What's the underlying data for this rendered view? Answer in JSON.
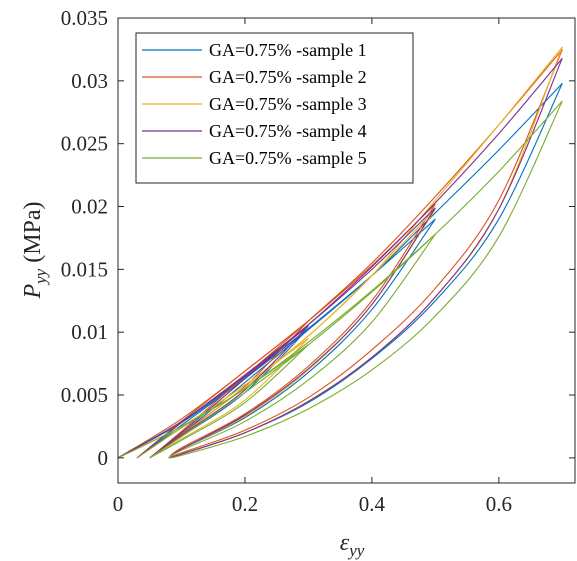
{
  "chart_data": {
    "type": "line",
    "title": "",
    "xlabel": {
      "symbol": "ε",
      "subscript": "yy"
    },
    "ylabel": {
      "symbol": "P",
      "subscript": "yy",
      "unit": "(MPa)"
    },
    "xlim": [
      0,
      0.72
    ],
    "ylim": [
      -0.002,
      0.035
    ],
    "xticks": [
      0,
      0.2,
      0.4,
      0.6
    ],
    "xtick_labels": [
      "0",
      "0.2",
      "0.4",
      "0.6"
    ],
    "yticks": [
      0,
      0.005,
      0.01,
      0.015,
      0.02,
      0.025,
      0.03,
      0.035
    ],
    "ytick_labels": [
      "0",
      "0.005",
      "0.01",
      "0.015",
      "0.02",
      "0.025",
      "0.03",
      "0.035"
    ],
    "grid": false,
    "legend_position": "top-left",
    "series": [
      {
        "name": "GA=0.75% -sample 1",
        "color": "#0072BD",
        "cycles": [
          {
            "load": [
              [
                0.0,
                0.0
              ],
              [
                0.1,
                0.0028
              ],
              [
                0.2,
                0.0064
              ],
              [
                0.3,
                0.0103
              ]
            ],
            "unload": [
              [
                0.3,
                0.0103
              ],
              [
                0.2,
                0.0052
              ],
              [
                0.1,
                0.0017
              ],
              [
                0.05,
                0.0
              ]
            ]
          },
          {
            "load": [
              [
                0.03,
                0.0
              ],
              [
                0.1,
                0.0026
              ],
              [
                0.2,
                0.0063
              ],
              [
                0.3,
                0.0103
              ],
              [
                0.4,
                0.0145
              ],
              [
                0.5,
                0.019
              ]
            ],
            "unload": [
              [
                0.5,
                0.019
              ],
              [
                0.4,
                0.0118
              ],
              [
                0.3,
                0.0068
              ],
              [
                0.2,
                0.0032
              ],
              [
                0.1,
                0.0007
              ],
              [
                0.08,
                0.0
              ]
            ]
          },
          {
            "load": [
              [
                0.05,
                0.0
              ],
              [
                0.1,
                0.0019
              ],
              [
                0.2,
                0.006
              ],
              [
                0.3,
                0.0102
              ],
              [
                0.4,
                0.0145
              ],
              [
                0.5,
                0.0195
              ],
              [
                0.6,
                0.0245
              ],
              [
                0.7,
                0.0298
              ]
            ],
            "unload": [
              [
                0.7,
                0.0298
              ],
              [
                0.6,
                0.019
              ],
              [
                0.5,
                0.0125
              ],
              [
                0.4,
                0.0079
              ],
              [
                0.3,
                0.0044
              ],
              [
                0.2,
                0.002
              ],
              [
                0.1,
                0.0003
              ],
              [
                0.08,
                0.0
              ]
            ]
          }
        ]
      },
      {
        "name": "GA=0.75% -sample 2",
        "color": "#D95319",
        "cycles": [
          {
            "load": [
              [
                0.0,
                0.0
              ],
              [
                0.1,
                0.0031
              ],
              [
                0.2,
                0.0069
              ],
              [
                0.3,
                0.0109
              ]
            ],
            "unload": [
              [
                0.3,
                0.0109
              ],
              [
                0.2,
                0.0057
              ],
              [
                0.1,
                0.0019
              ],
              [
                0.05,
                0.0
              ]
            ]
          },
          {
            "load": [
              [
                0.03,
                0.0
              ],
              [
                0.1,
                0.0029
              ],
              [
                0.2,
                0.0069
              ],
              [
                0.3,
                0.0109
              ],
              [
                0.4,
                0.0153
              ],
              [
                0.5,
                0.0202
              ]
            ],
            "unload": [
              [
                0.5,
                0.0202
              ],
              [
                0.4,
                0.0125
              ],
              [
                0.3,
                0.0073
              ],
              [
                0.2,
                0.0035
              ],
              [
                0.1,
                0.0008
              ],
              [
                0.08,
                0.0
              ]
            ]
          },
          {
            "load": [
              [
                0.05,
                0.0
              ],
              [
                0.1,
                0.0021
              ],
              [
                0.2,
                0.0065
              ],
              [
                0.3,
                0.0109
              ],
              [
                0.4,
                0.0155
              ],
              [
                0.5,
                0.0208
              ],
              [
                0.6,
                0.0265
              ],
              [
                0.7,
                0.0325
              ]
            ],
            "unload": [
              [
                0.7,
                0.0325
              ],
              [
                0.6,
                0.0205
              ],
              [
                0.5,
                0.0135
              ],
              [
                0.4,
                0.0086
              ],
              [
                0.3,
                0.0048
              ],
              [
                0.2,
                0.0022
              ],
              [
                0.1,
                0.0004
              ],
              [
                0.08,
                0.0
              ]
            ]
          }
        ]
      },
      {
        "name": "GA=0.75% -sample 3",
        "color": "#EDB120",
        "cycles": [
          {
            "load": [
              [
                0.0,
                0.0
              ],
              [
                0.1,
                0.0025
              ],
              [
                0.2,
                0.0058
              ],
              [
                0.3,
                0.0095
              ]
            ],
            "unload": [
              [
                0.3,
                0.0095
              ],
              [
                0.2,
                0.0046
              ],
              [
                0.1,
                0.0015
              ],
              [
                0.05,
                0.0
              ]
            ]
          },
          {
            "load": [
              [
                0.03,
                0.0
              ],
              [
                0.1,
                0.0024
              ],
              [
                0.2,
                0.0058
              ],
              [
                0.3,
                0.0097
              ],
              [
                0.4,
                0.0145
              ],
              [
                0.5,
                0.0198
              ]
            ],
            "unload": [
              [
                0.5,
                0.0198
              ],
              [
                0.4,
                0.0122
              ],
              [
                0.3,
                0.007
              ],
              [
                0.2,
                0.0033
              ],
              [
                0.1,
                0.0007
              ],
              [
                0.08,
                0.0
              ]
            ]
          },
          {
            "load": [
              [
                0.05,
                0.0
              ],
              [
                0.1,
                0.0018
              ],
              [
                0.2,
                0.0056
              ],
              [
                0.3,
                0.0097
              ],
              [
                0.4,
                0.0145
              ],
              [
                0.5,
                0.0205
              ],
              [
                0.6,
                0.0265
              ],
              [
                0.7,
                0.0327
              ]
            ],
            "unload": [
              [
                0.7,
                0.0327
              ],
              [
                0.6,
                0.0198
              ],
              [
                0.5,
                0.0128
              ],
              [
                0.4,
                0.008
              ],
              [
                0.3,
                0.0045
              ],
              [
                0.2,
                0.002
              ],
              [
                0.1,
                0.0003
              ],
              [
                0.08,
                0.0
              ]
            ]
          }
        ]
      },
      {
        "name": "GA=0.75% -sample 4",
        "color": "#7E2F8E",
        "cycles": [
          {
            "load": [
              [
                0.0,
                0.0
              ],
              [
                0.1,
                0.0029
              ],
              [
                0.2,
                0.0065
              ],
              [
                0.3,
                0.0105
              ]
            ],
            "unload": [
              [
                0.3,
                0.0105
              ],
              [
                0.2,
                0.0054
              ],
              [
                0.1,
                0.0018
              ],
              [
                0.05,
                0.0
              ]
            ]
          },
          {
            "load": [
              [
                0.03,
                0.0
              ],
              [
                0.1,
                0.0028
              ],
              [
                0.2,
                0.0066
              ],
              [
                0.3,
                0.0106
              ],
              [
                0.4,
                0.015
              ],
              [
                0.5,
                0.0199
              ]
            ],
            "unload": [
              [
                0.5,
                0.0199
              ],
              [
                0.4,
                0.0122
              ],
              [
                0.3,
                0.0071
              ],
              [
                0.2,
                0.0034
              ],
              [
                0.1,
                0.0007
              ],
              [
                0.08,
                0.0
              ]
            ]
          },
          {
            "load": [
              [
                0.05,
                0.0
              ],
              [
                0.1,
                0.002
              ],
              [
                0.2,
                0.0063
              ],
              [
                0.3,
                0.0106
              ],
              [
                0.4,
                0.0152
              ],
              [
                0.5,
                0.0203
              ],
              [
                0.6,
                0.0258
              ],
              [
                0.7,
                0.0318
              ]
            ],
            "unload": [
              [
                0.7,
                0.0318
              ],
              [
                0.6,
                0.0198
              ],
              [
                0.5,
                0.0128
              ],
              [
                0.4,
                0.008
              ],
              [
                0.3,
                0.0045
              ],
              [
                0.2,
                0.002
              ],
              [
                0.1,
                0.0003
              ],
              [
                0.08,
                0.0
              ]
            ]
          }
        ]
      },
      {
        "name": "GA=0.75% -sample 5",
        "color": "#77AC30",
        "cycles": [
          {
            "load": [
              [
                0.0,
                0.0
              ],
              [
                0.1,
                0.0025
              ],
              [
                0.2,
                0.0055
              ],
              [
                0.3,
                0.009
              ]
            ],
            "unload": [
              [
                0.3,
                0.009
              ],
              [
                0.2,
                0.0044
              ],
              [
                0.1,
                0.0014
              ],
              [
                0.05,
                0.0
              ]
            ]
          },
          {
            "load": [
              [
                0.03,
                0.0
              ],
              [
                0.1,
                0.0024
              ],
              [
                0.2,
                0.0055
              ],
              [
                0.3,
                0.0092
              ],
              [
                0.4,
                0.0133
              ],
              [
                0.5,
                0.0178
              ]
            ],
            "unload": [
              [
                0.5,
                0.0178
              ],
              [
                0.4,
                0.0108
              ],
              [
                0.3,
                0.0062
              ],
              [
                0.2,
                0.0029
              ],
              [
                0.1,
                0.0006
              ],
              [
                0.08,
                0.0
              ]
            ]
          },
          {
            "load": [
              [
                0.05,
                0.0
              ],
              [
                0.1,
                0.0017
              ],
              [
                0.2,
                0.0052
              ],
              [
                0.3,
                0.009
              ],
              [
                0.4,
                0.0132
              ],
              [
                0.5,
                0.0178
              ],
              [
                0.6,
                0.0228
              ],
              [
                0.7,
                0.0284
              ]
            ],
            "unload": [
              [
                0.7,
                0.0284
              ],
              [
                0.6,
                0.0176
              ],
              [
                0.5,
                0.0113
              ],
              [
                0.4,
                0.007
              ],
              [
                0.3,
                0.0039
              ],
              [
                0.2,
                0.0017
              ],
              [
                0.1,
                0.0002
              ],
              [
                0.08,
                0.0
              ]
            ]
          }
        ]
      }
    ]
  }
}
